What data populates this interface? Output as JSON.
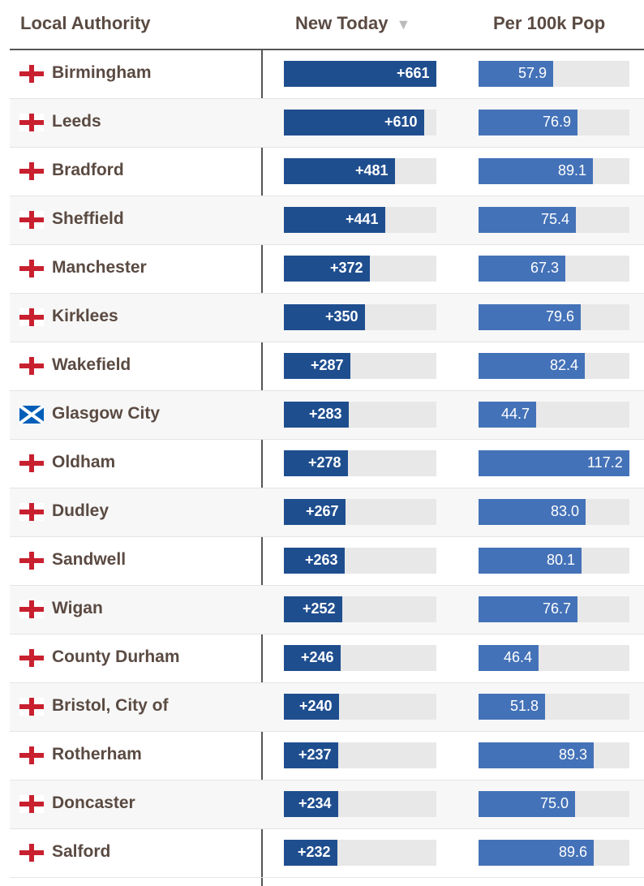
{
  "header": {
    "local_authority": "Local Authority",
    "new_today": "New Today",
    "sort_arrow": "▼",
    "per_100k": "Per 100k Pop"
  },
  "chart_data": {
    "type": "table",
    "columns": [
      "Local Authority",
      "New Today",
      "Per 100k Pop"
    ],
    "sorted_by": "New Today",
    "new_today_max": 661,
    "per_100k_max": 117.2,
    "rows": [
      {
        "flag": "england-flag-icon",
        "name": "Birmingham",
        "new_today": 661,
        "new_label": "+661",
        "per_100k": 57.9,
        "per_label": "57.9"
      },
      {
        "flag": "england-flag-icon",
        "name": "Leeds",
        "new_today": 610,
        "new_label": "+610",
        "per_100k": 76.9,
        "per_label": "76.9"
      },
      {
        "flag": "england-flag-icon",
        "name": "Bradford",
        "new_today": 481,
        "new_label": "+481",
        "per_100k": 89.1,
        "per_label": "89.1"
      },
      {
        "flag": "england-flag-icon",
        "name": "Sheffield",
        "new_today": 441,
        "new_label": "+441",
        "per_100k": 75.4,
        "per_label": "75.4"
      },
      {
        "flag": "england-flag-icon",
        "name": "Manchester",
        "new_today": 372,
        "new_label": "+372",
        "per_100k": 67.3,
        "per_label": "67.3"
      },
      {
        "flag": "england-flag-icon",
        "name": "Kirklees",
        "new_today": 350,
        "new_label": "+350",
        "per_100k": 79.6,
        "per_label": "79.6"
      },
      {
        "flag": "england-flag-icon",
        "name": "Wakefield",
        "new_today": 287,
        "new_label": "+287",
        "per_100k": 82.4,
        "per_label": "82.4"
      },
      {
        "flag": "scotland-flag-icon",
        "name": "Glasgow City",
        "new_today": 283,
        "new_label": "+283",
        "per_100k": 44.7,
        "per_label": "44.7"
      },
      {
        "flag": "england-flag-icon",
        "name": "Oldham",
        "new_today": 278,
        "new_label": "+278",
        "per_100k": 117.2,
        "per_label": "117.2"
      },
      {
        "flag": "england-flag-icon",
        "name": "Dudley",
        "new_today": 267,
        "new_label": "+267",
        "per_100k": 83.0,
        "per_label": "83.0"
      },
      {
        "flag": "england-flag-icon",
        "name": "Sandwell",
        "new_today": 263,
        "new_label": "+263",
        "per_100k": 80.1,
        "per_label": "80.1"
      },
      {
        "flag": "england-flag-icon",
        "name": "Wigan",
        "new_today": 252,
        "new_label": "+252",
        "per_100k": 76.7,
        "per_label": "76.7"
      },
      {
        "flag": "england-flag-icon",
        "name": "County Durham",
        "new_today": 246,
        "new_label": "+246",
        "per_100k": 46.4,
        "per_label": "46.4"
      },
      {
        "flag": "england-flag-icon",
        "name": "Bristol, City of",
        "new_today": 240,
        "new_label": "+240",
        "per_100k": 51.8,
        "per_label": "51.8"
      },
      {
        "flag": "england-flag-icon",
        "name": "Rotherham",
        "new_today": 237,
        "new_label": "+237",
        "per_100k": 89.3,
        "per_label": "89.3"
      },
      {
        "flag": "england-flag-icon",
        "name": "Doncaster",
        "new_today": 234,
        "new_label": "+234",
        "per_100k": 75.0,
        "per_label": "75.0"
      },
      {
        "flag": "england-flag-icon",
        "name": "Salford",
        "new_today": 232,
        "new_label": "+232",
        "per_100k": 89.6,
        "per_label": "89.6"
      }
    ]
  },
  "colors": {
    "new_bar": "#1f4e8f",
    "per_bar": "#4472b8",
    "bar_track": "#e8e8e8",
    "england_cross": "#c8202f",
    "scotland_blue": "#005eb8",
    "text": "#5a4a42"
  }
}
